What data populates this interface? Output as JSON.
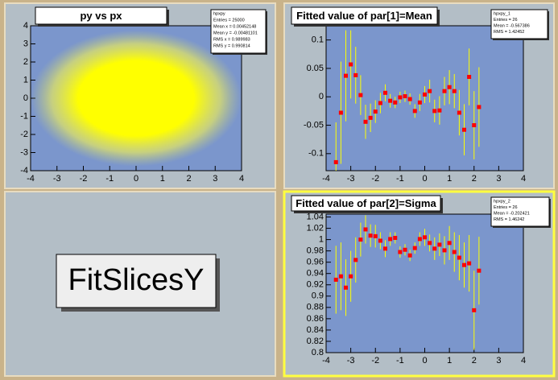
{
  "chart_data": [
    {
      "type": "scatter",
      "title": "py vs px",
      "color": "#ffff00",
      "frame_color": "#7b96cc",
      "stats": [
        "hpxpy",
        "Entries = 25000",
        "Mean x = 0.00452148",
        "Mean y = -0.00481101",
        "RMS x = 0.989983",
        "RMS y = 0.990814"
      ],
      "xlim": [
        -4,
        4
      ],
      "ylim": [
        -4,
        4
      ],
      "xticks": [
        -4,
        -3,
        -2,
        -1,
        0,
        1,
        2,
        3,
        4
      ],
      "yticks": [
        -4,
        -3,
        -2,
        -1,
        0,
        1,
        2,
        3,
        4
      ]
    },
    {
      "type": "errorbar",
      "title": "Fitted value of par[1]=Mean",
      "color": "#ff0000",
      "bar_color": "#ffff00",
      "frame_color": "#7b96cc",
      "stats": [
        "hpxpy_1",
        "Entries = 26",
        "Mean = -0.567386",
        "RMS = 1.42452"
      ],
      "xlim": [
        -4,
        4
      ],
      "ylim": [
        -0.13,
        0.125
      ],
      "xticks": [
        -4,
        -3,
        -2,
        -1,
        0,
        1,
        2,
        3,
        4
      ],
      "yticks": [
        -0.1,
        -0.05,
        0,
        0.05,
        0.1
      ],
      "x": [
        -3.6,
        -3.4,
        -3.2,
        -3,
        -2.8,
        -2.6,
        -2.4,
        -2.2,
        -2,
        -1.8,
        -1.6,
        -1.4,
        -1.2,
        -1,
        -0.8,
        -0.6,
        -0.4,
        -0.2,
        0,
        0.2,
        0.4,
        0.6,
        0.8,
        1,
        1.2,
        1.4,
        1.6,
        1.8,
        2,
        2.2
      ],
      "values": [
        -0.115,
        -0.028,
        0.037,
        0.057,
        0.038,
        0.003,
        -0.044,
        -0.037,
        -0.026,
        -0.011,
        0.007,
        -0.007,
        -0.01,
        -0.001,
        0.001,
        -0.004,
        -0.025,
        -0.01,
        0.004,
        0.01,
        -0.025,
        -0.024,
        0.01,
        0.017,
        0.01,
        -0.028,
        -0.058,
        0.035,
        -0.05,
        -0.018
      ],
      "errors": [
        0.07,
        0.09,
        0.08,
        0.06,
        0.05,
        0.035,
        0.03,
        0.025,
        0.02,
        0.018,
        0.015,
        0.012,
        0.01,
        0.01,
        0.01,
        0.01,
        0.012,
        0.015,
        0.015,
        0.02,
        0.02,
        0.025,
        0.025,
        0.03,
        0.03,
        0.04,
        0.045,
        0.05,
        0.06,
        0.07
      ]
    },
    {
      "type": "errorbar",
      "title": "Fitted value of par[2]=Sigma",
      "color": "#ff0000",
      "bar_color": "#ffff00",
      "frame_color": "#7b96cc",
      "stats": [
        "hpxpy_2",
        "Entries = 26",
        "Mean = -0.202421",
        "RMS = 1.46242"
      ],
      "xlim": [
        -4,
        4
      ],
      "ylim": [
        0.8,
        1.045
      ],
      "xticks": [
        -4,
        -3,
        -2,
        -1,
        0,
        1,
        2,
        3,
        4
      ],
      "yticks": [
        0.8,
        0.82,
        0.84,
        0.86,
        0.88,
        0.9,
        0.92,
        0.94,
        0.96,
        0.98,
        1,
        1.02,
        1.04
      ],
      "x": [
        -3.6,
        -3.4,
        -3.2,
        -3,
        -2.8,
        -2.6,
        -2.4,
        -2.2,
        -2,
        -1.8,
        -1.6,
        -1.4,
        -1.2,
        -1,
        -0.8,
        -0.6,
        -0.4,
        -0.2,
        0,
        0.2,
        0.4,
        0.6,
        0.8,
        1,
        1.2,
        1.4,
        1.6,
        1.8,
        2,
        2.2
      ],
      "values": [
        0.929,
        0.935,
        0.915,
        0.935,
        0.964,
        1.0,
        1.018,
        1.007,
        1.006,
        0.998,
        0.984,
        1.001,
        1.003,
        0.978,
        0.982,
        0.972,
        0.985,
        1.001,
        1.004,
        0.994,
        0.984,
        0.991,
        0.981,
        0.994,
        0.978,
        0.968,
        0.955,
        0.958,
        0.875,
        0.945
      ],
      "errors": [
        0.06,
        0.06,
        0.05,
        0.045,
        0.04,
        0.03,
        0.025,
        0.02,
        0.02,
        0.015,
        0.015,
        0.012,
        0.01,
        0.01,
        0.01,
        0.01,
        0.01,
        0.012,
        0.015,
        0.015,
        0.02,
        0.02,
        0.025,
        0.03,
        0.035,
        0.04,
        0.04,
        0.05,
        0.07,
        0.06
      ]
    }
  ],
  "text_box": {
    "text": "FitSlicesY"
  }
}
